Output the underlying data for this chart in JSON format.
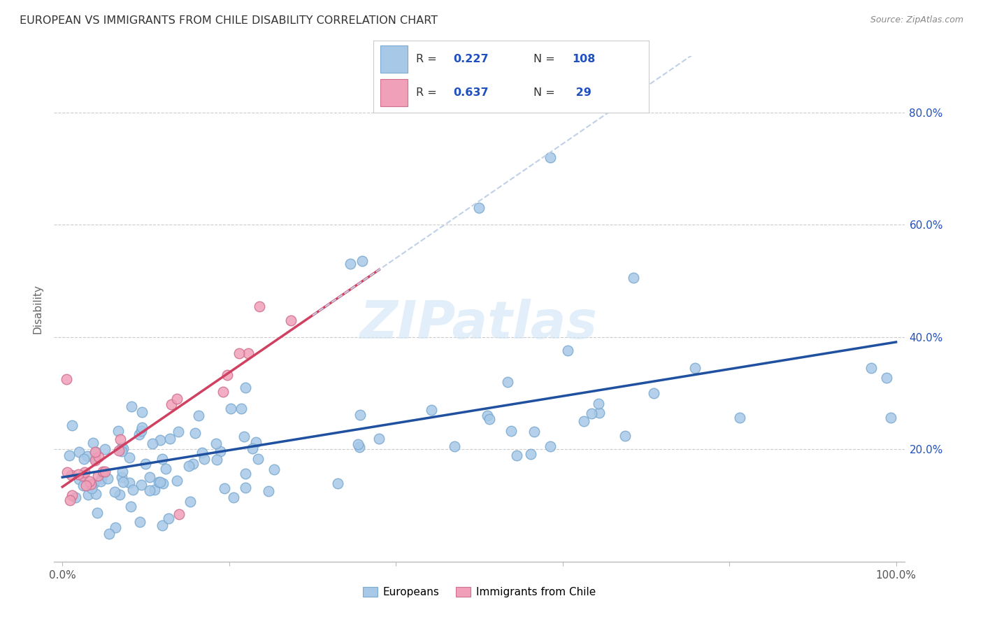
{
  "title": "EUROPEAN VS IMMIGRANTS FROM CHILE DISABILITY CORRELATION CHART",
  "source": "Source: ZipAtlas.com",
  "ylabel": "Disability",
  "blue_color": "#A8C8E8",
  "blue_edge_color": "#7AAAD0",
  "pink_color": "#F0A0B8",
  "pink_edge_color": "#D07090",
  "blue_line_color": "#2050A0",
  "pink_line_color": "#D04060",
  "dash_color": "#C0D0E8",
  "legend_text_color": "#2050C0",
  "right_tick_color": "#2050C0",
  "background_color": "#FFFFFF",
  "grid_color": "#CCCCCC",
  "title_color": "#333333",
  "source_color": "#888888",
  "watermark_color": "#D0E4F5",
  "R_blue": 0.227,
  "N_blue": 108,
  "R_pink": 0.637,
  "N_pink": 29,
  "blue_intercept": 0.145,
  "blue_slope": 0.165,
  "pink_intercept": 0.125,
  "pink_slope": 1.05
}
